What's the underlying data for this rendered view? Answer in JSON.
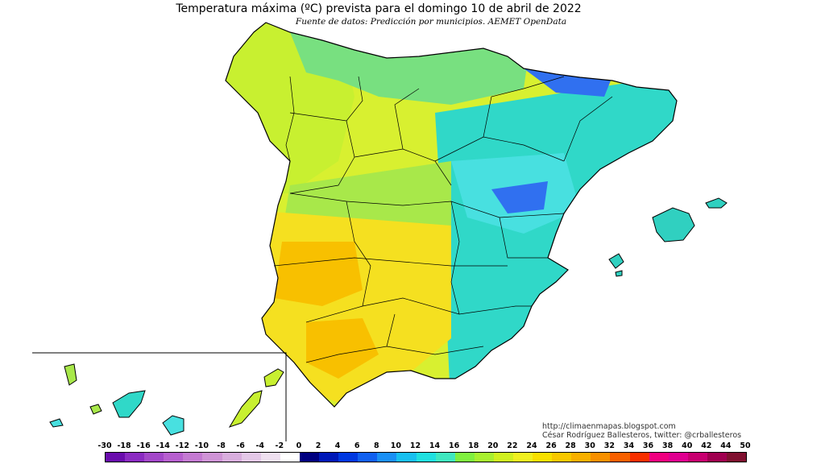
{
  "header": {
    "title": "Temperatura máxima (ºC) prevista para el domingo 10 de abril de 2022",
    "subtitle": "Fuente de datos: Predicción por municipios. AEMET OpenData"
  },
  "credits": {
    "url": "http://climaenmapas.blogspot.com",
    "author": "César Rodríguez Ballesteros, twitter: @crballesteros"
  },
  "legend": {
    "ticks": [
      "-30",
      "-18",
      "-16",
      "-14",
      "-12",
      "-10",
      "-8",
      "-6",
      "-4",
      "-2",
      "0",
      "2",
      "4",
      "6",
      "8",
      "10",
      "12",
      "14",
      "16",
      "18",
      "20",
      "22",
      "24",
      "26",
      "28",
      "30",
      "32",
      "34",
      "36",
      "38",
      "40",
      "42",
      "44",
      "50"
    ],
    "colors": [
      "#6a0dad",
      "#8b2bc2",
      "#a347c9",
      "#b75fcf",
      "#c47ad2",
      "#cf94d6",
      "#d9aede",
      "#e4c8e8",
      "#efe0f0",
      "#ffffff",
      "#000080",
      "#0018b8",
      "#0038e0",
      "#1060f0",
      "#1a90f5",
      "#18c0f0",
      "#20e0e0",
      "#40e8c0",
      "#80f040",
      "#a8f030",
      "#d0f020",
      "#f0f020",
      "#f8e000",
      "#f8c800",
      "#f8b000",
      "#f89000",
      "#f86000",
      "#f83000",
      "#f00080",
      "#e00090",
      "#c80070",
      "#a00050",
      "#801030"
    ]
  },
  "map": {
    "colors": {
      "north_coast": "#a8e84a",
      "galicia": "#c8f030",
      "cantabria": "#78e080",
      "east": "#30d8c8",
      "iberico": "#48e0e0",
      "high_cold": "#3070f0",
      "southwest": "#f5e020",
      "hot": "#f8c000",
      "mid": "#d8f030",
      "balear": "#30d0c0",
      "border": "#000000"
    }
  }
}
